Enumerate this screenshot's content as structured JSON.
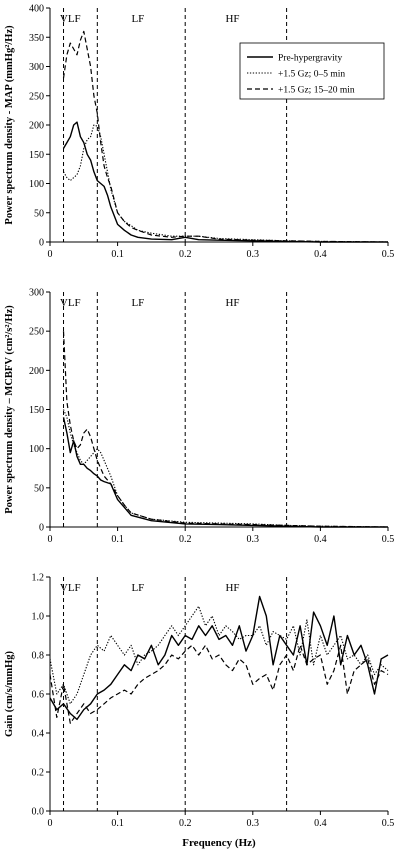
{
  "chart_data": [
    {
      "type": "line",
      "ylabel": "Power spectrum density - MAP (mmHg²/Hz)",
      "xlabel": "",
      "xlim": [
        0,
        0.5
      ],
      "ylim": [
        0,
        400
      ],
      "xticks": [
        "0",
        "0.1",
        "0.2",
        "0.3",
        "0.4",
        "0.5"
      ],
      "yticks": [
        "0",
        "50",
        "100",
        "150",
        "200",
        "250",
        "300",
        "350",
        "400"
      ],
      "xtick_values": [
        0,
        0.1,
        0.2,
        0.3,
        0.4,
        0.5
      ],
      "ytick_values": [
        0,
        50,
        100,
        150,
        200,
        250,
        300,
        350,
        400
      ],
      "bands": [
        {
          "label": "VLF",
          "x": 0.03
        },
        {
          "label": "LF",
          "x": 0.13
        },
        {
          "label": "HF",
          "x": 0.27
        }
      ],
      "vlines": [
        0.02,
        0.07,
        0.2,
        0.35
      ],
      "legend": {
        "position": "top-right",
        "entries": [
          "Pre-hypergravity",
          "+1.5 Gz; 0–5 min",
          "+1.5 Gz; 15–20 min"
        ]
      },
      "series": [
        {
          "name": "Pre-hypergravity",
          "style": "solid",
          "x": [
            0.02,
            0.025,
            0.03,
            0.035,
            0.04,
            0.045,
            0.05,
            0.055,
            0.06,
            0.065,
            0.07,
            0.075,
            0.08,
            0.085,
            0.09,
            0.1,
            0.11,
            0.12,
            0.13,
            0.15,
            0.18,
            0.2,
            0.22,
            0.25,
            0.3,
            0.35,
            0.4,
            0.5
          ],
          "y": [
            160,
            170,
            180,
            200,
            205,
            180,
            170,
            150,
            140,
            120,
            105,
            100,
            95,
            80,
            60,
            30,
            20,
            12,
            8,
            5,
            4,
            8,
            4,
            3,
            2,
            1,
            0,
            0
          ]
        },
        {
          "name": "+1.5 Gz; 0–5 min",
          "style": "dotted",
          "x": [
            0.02,
            0.025,
            0.03,
            0.035,
            0.04,
            0.045,
            0.05,
            0.055,
            0.06,
            0.065,
            0.07,
            0.075,
            0.08,
            0.085,
            0.09,
            0.1,
            0.11,
            0.12,
            0.13,
            0.15,
            0.18,
            0.2,
            0.22,
            0.25,
            0.3,
            0.35,
            0.4,
            0.5
          ],
          "y": [
            120,
            110,
            105,
            110,
            115,
            130,
            160,
            175,
            180,
            200,
            198,
            180,
            150,
            120,
            90,
            50,
            35,
            28,
            20,
            15,
            10,
            10,
            10,
            6,
            4,
            2,
            1,
            0
          ]
        },
        {
          "name": "+1.5 Gz; 15–20 min",
          "style": "dashed",
          "x": [
            0.02,
            0.025,
            0.03,
            0.035,
            0.04,
            0.045,
            0.05,
            0.055,
            0.06,
            0.065,
            0.07,
            0.075,
            0.08,
            0.085,
            0.09,
            0.1,
            0.11,
            0.12,
            0.13,
            0.15,
            0.18,
            0.2,
            0.22,
            0.25,
            0.3,
            0.35,
            0.4,
            0.5
          ],
          "y": [
            280,
            320,
            340,
            330,
            320,
            345,
            360,
            330,
            300,
            250,
            220,
            170,
            130,
            110,
            95,
            50,
            35,
            25,
            20,
            12,
            8,
            10,
            10,
            5,
            3,
            2,
            1,
            0
          ]
        }
      ]
    },
    {
      "type": "line",
      "ylabel": "Power spectrum density – MCBFV (cm²/s²/Hz)",
      "xlabel": "",
      "xlim": [
        0,
        0.5
      ],
      "ylim": [
        0,
        300
      ],
      "xticks": [
        "0",
        "0.1",
        "0.2",
        "0.3",
        "0.4",
        "0.5"
      ],
      "yticks": [
        "0",
        "50",
        "100",
        "150",
        "200",
        "250",
        "300"
      ],
      "xtick_values": [
        0,
        0.1,
        0.2,
        0.3,
        0.4,
        0.5
      ],
      "ytick_values": [
        0,
        50,
        100,
        150,
        200,
        250,
        300
      ],
      "bands": [
        {
          "label": "VLF",
          "x": 0.03
        },
        {
          "label": "LF",
          "x": 0.13
        },
        {
          "label": "HF",
          "x": 0.27
        }
      ],
      "vlines": [
        0.02,
        0.07,
        0.2,
        0.35
      ],
      "series": [
        {
          "name": "Pre-hypergravity",
          "style": "solid",
          "x": [
            0.02,
            0.025,
            0.03,
            0.035,
            0.04,
            0.045,
            0.05,
            0.055,
            0.06,
            0.065,
            0.07,
            0.075,
            0.08,
            0.09,
            0.1,
            0.11,
            0.12,
            0.15,
            0.2,
            0.25,
            0.3,
            0.35,
            0.4,
            0.5
          ],
          "y": [
            140,
            120,
            95,
            110,
            90,
            80,
            80,
            75,
            72,
            68,
            65,
            60,
            58,
            55,
            35,
            25,
            15,
            8,
            4,
            3,
            2,
            1,
            0,
            0
          ]
        },
        {
          "name": "+1.5 Gz; 0–5 min",
          "style": "dotted",
          "x": [
            0.02,
            0.025,
            0.03,
            0.035,
            0.04,
            0.045,
            0.05,
            0.055,
            0.06,
            0.065,
            0.07,
            0.075,
            0.08,
            0.09,
            0.1,
            0.11,
            0.12,
            0.15,
            0.2,
            0.25,
            0.3,
            0.35,
            0.4,
            0.5
          ],
          "y": [
            150,
            140,
            120,
            105,
            95,
            85,
            80,
            85,
            90,
            95,
            100,
            95,
            85,
            65,
            40,
            28,
            18,
            10,
            6,
            5,
            4,
            2,
            1,
            0
          ]
        },
        {
          "name": "+1.5 Gz; 15–20 min",
          "style": "dashed",
          "x": [
            0.02,
            0.025,
            0.03,
            0.035,
            0.04,
            0.045,
            0.05,
            0.055,
            0.06,
            0.065,
            0.07,
            0.075,
            0.08,
            0.09,
            0.1,
            0.11,
            0.12,
            0.15,
            0.2,
            0.25,
            0.3,
            0.35,
            0.4,
            0.5
          ],
          "y": [
            250,
            160,
            130,
            110,
            100,
            105,
            120,
            125,
            115,
            100,
            85,
            75,
            65,
            55,
            40,
            28,
            18,
            10,
            5,
            4,
            3,
            2,
            1,
            0
          ]
        }
      ]
    },
    {
      "type": "line",
      "ylabel": "Gain (cm/s/mmHg)",
      "xlabel": "Frequency (Hz)",
      "xlim": [
        0,
        0.5
      ],
      "ylim": [
        0,
        1.2
      ],
      "xticks": [
        "0",
        "0.1",
        "0.2",
        "0.3",
        "0.4",
        "0.5"
      ],
      "yticks": [
        "0.0",
        "0.2",
        "0.4",
        "0.6",
        "0.8",
        "1.0",
        "1.2"
      ],
      "xtick_values": [
        0,
        0.1,
        0.2,
        0.3,
        0.4,
        0.5
      ],
      "ytick_values": [
        0,
        0.2,
        0.4,
        0.6,
        0.8,
        1.0,
        1.2
      ],
      "bands": [
        {
          "label": "VLF",
          "x": 0.03
        },
        {
          "label": "LF",
          "x": 0.13
        },
        {
          "label": "HF",
          "x": 0.27
        }
      ],
      "vlines": [
        0.02,
        0.07,
        0.2,
        0.35
      ],
      "series": [
        {
          "name": "Pre-hypergravity",
          "style": "solid",
          "x": [
            0,
            0.01,
            0.02,
            0.03,
            0.04,
            0.05,
            0.06,
            0.07,
            0.08,
            0.09,
            0.1,
            0.11,
            0.12,
            0.13,
            0.14,
            0.15,
            0.16,
            0.17,
            0.18,
            0.19,
            0.2,
            0.21,
            0.22,
            0.23,
            0.24,
            0.25,
            0.26,
            0.27,
            0.28,
            0.29,
            0.3,
            0.31,
            0.32,
            0.33,
            0.34,
            0.35,
            0.36,
            0.37,
            0.38,
            0.39,
            0.4,
            0.41,
            0.42,
            0.43,
            0.44,
            0.45,
            0.46,
            0.47,
            0.48,
            0.49,
            0.5
          ],
          "y": [
            0.58,
            0.52,
            0.55,
            0.5,
            0.47,
            0.52,
            0.55,
            0.6,
            0.62,
            0.65,
            0.7,
            0.75,
            0.72,
            0.8,
            0.78,
            0.85,
            0.75,
            0.8,
            0.9,
            0.85,
            0.9,
            0.88,
            0.95,
            0.9,
            0.95,
            0.88,
            0.9,
            0.85,
            0.95,
            0.82,
            0.9,
            1.1,
            1.0,
            0.75,
            0.9,
            0.85,
            0.8,
            0.95,
            0.75,
            1.02,
            0.95,
            0.85,
            1.0,
            0.75,
            0.9,
            0.8,
            0.85,
            0.75,
            0.6,
            0.78,
            0.8
          ]
        },
        {
          "name": "+1.5 Gz; 0–5 min",
          "style": "dotted",
          "x": [
            0,
            0.01,
            0.02,
            0.03,
            0.04,
            0.05,
            0.06,
            0.07,
            0.08,
            0.09,
            0.1,
            0.11,
            0.12,
            0.13,
            0.14,
            0.15,
            0.16,
            0.17,
            0.18,
            0.19,
            0.2,
            0.21,
            0.22,
            0.23,
            0.24,
            0.25,
            0.26,
            0.27,
            0.28,
            0.29,
            0.3,
            0.31,
            0.32,
            0.33,
            0.34,
            0.35,
            0.36,
            0.37,
            0.38,
            0.39,
            0.4,
            0.41,
            0.42,
            0.43,
            0.44,
            0.45,
            0.46,
            0.47,
            0.48,
            0.49,
            0.5
          ],
          "y": [
            0.78,
            0.6,
            0.65,
            0.55,
            0.6,
            0.7,
            0.8,
            0.85,
            0.82,
            0.9,
            0.85,
            0.8,
            0.85,
            0.75,
            0.8,
            0.82,
            0.85,
            0.9,
            0.95,
            0.9,
            0.95,
            1.0,
            1.05,
            0.95,
            1.0,
            0.9,
            0.95,
            0.92,
            0.88,
            0.9,
            0.9,
            0.95,
            0.85,
            0.92,
            0.9,
            0.88,
            0.95,
            0.8,
            0.98,
            0.75,
            0.9,
            0.8,
            0.85,
            0.9,
            0.78,
            0.8,
            0.75,
            0.8,
            0.7,
            0.75,
            0.72
          ]
        },
        {
          "name": "+1.5 Gz; 15–20 min",
          "style": "dashed",
          "x": [
            0,
            0.01,
            0.02,
            0.03,
            0.04,
            0.05,
            0.06,
            0.07,
            0.08,
            0.09,
            0.1,
            0.11,
            0.12,
            0.13,
            0.14,
            0.15,
            0.16,
            0.17,
            0.18,
            0.19,
            0.2,
            0.21,
            0.22,
            0.23,
            0.24,
            0.25,
            0.26,
            0.27,
            0.28,
            0.29,
            0.3,
            0.31,
            0.32,
            0.33,
            0.34,
            0.35,
            0.36,
            0.37,
            0.38,
            0.39,
            0.4,
            0.41,
            0.42,
            0.43,
            0.44,
            0.45,
            0.46,
            0.47,
            0.48,
            0.49,
            0.5
          ],
          "y": [
            0.7,
            0.48,
            0.65,
            0.45,
            0.5,
            0.55,
            0.5,
            0.52,
            0.55,
            0.58,
            0.6,
            0.62,
            0.6,
            0.65,
            0.68,
            0.7,
            0.72,
            0.75,
            0.8,
            0.78,
            0.82,
            0.85,
            0.8,
            0.85,
            0.78,
            0.8,
            0.75,
            0.72,
            0.78,
            0.75,
            0.65,
            0.68,
            0.7,
            0.62,
            0.75,
            0.8,
            0.72,
            0.85,
            0.75,
            0.78,
            0.8,
            0.65,
            0.72,
            0.85,
            0.6,
            0.72,
            0.75,
            0.78,
            0.65,
            0.72,
            0.7
          ]
        }
      ]
    }
  ]
}
